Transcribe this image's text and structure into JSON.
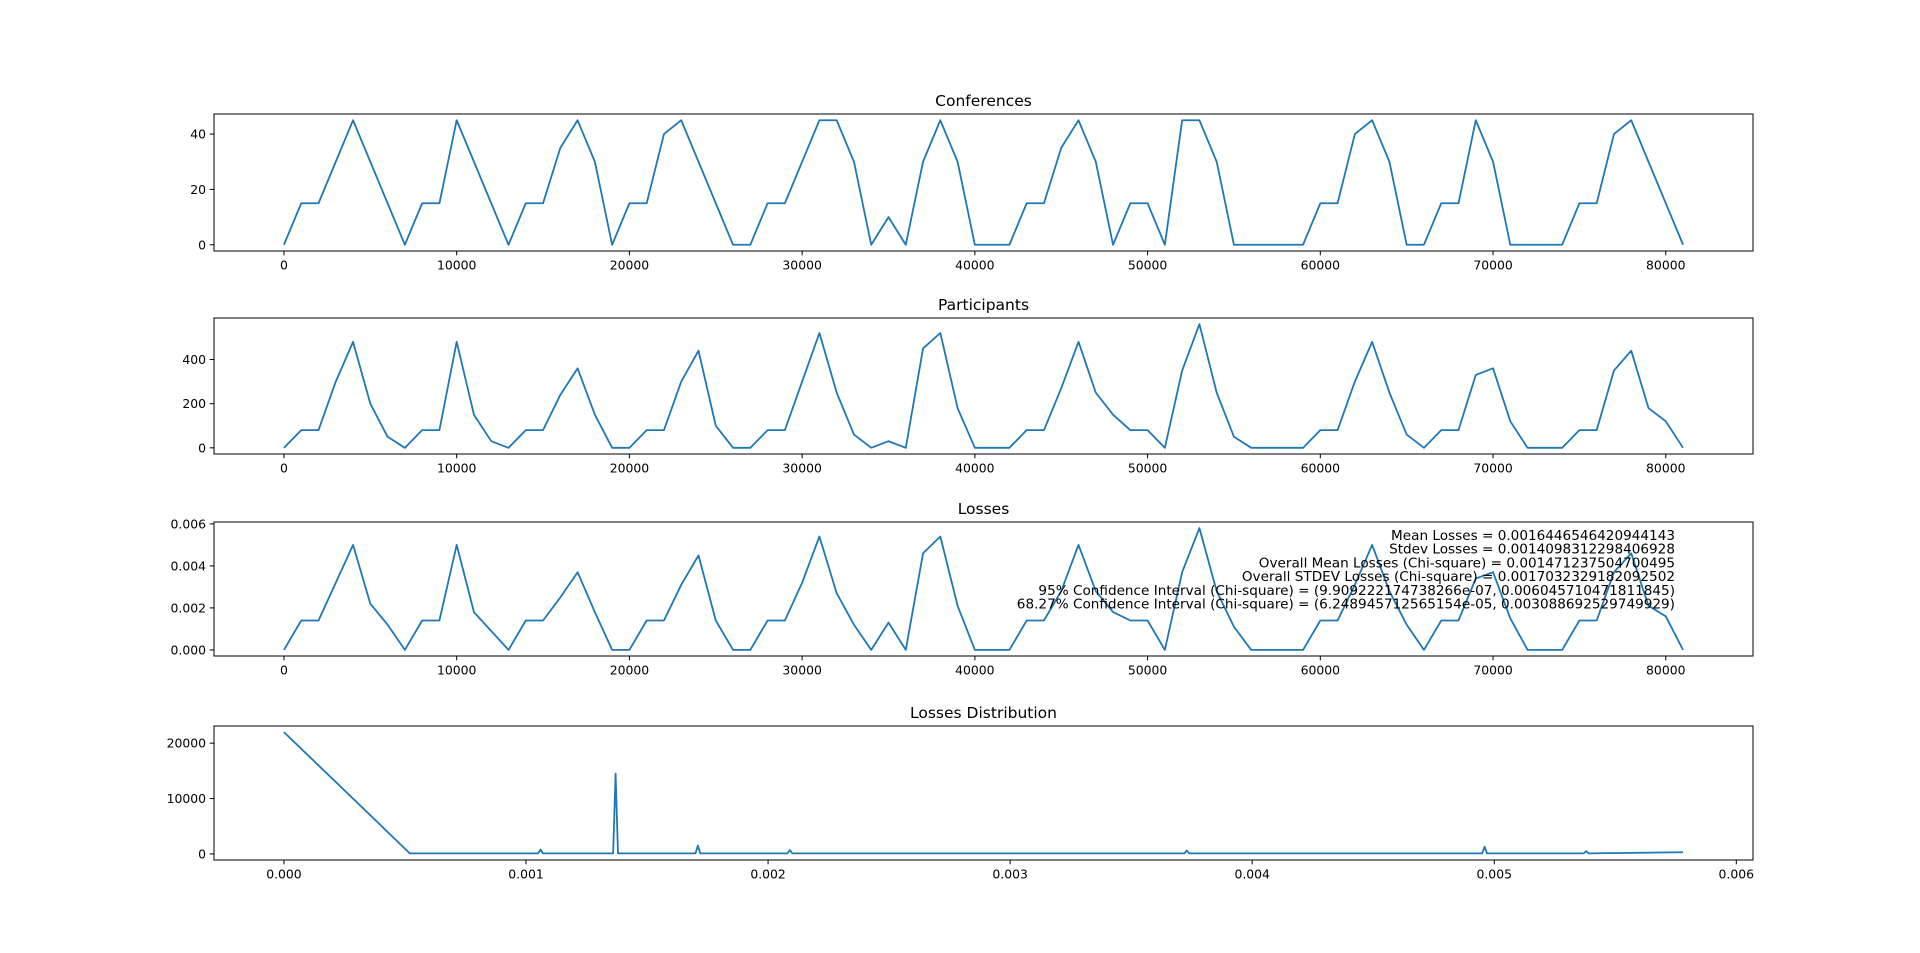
{
  "chart_data": [
    {
      "type": "line",
      "title": "Conferences",
      "color": "#1f77b4",
      "x": [
        0,
        1000,
        2000,
        3000,
        4000,
        5000,
        6000,
        7000,
        8000,
        9000,
        10000,
        11000,
        12000,
        13000,
        14000,
        15000,
        16000,
        17000,
        18000,
        19000,
        20000,
        21000,
        22000,
        23000,
        24000,
        25000,
        26000,
        27000,
        28000,
        29000,
        30000,
        31000,
        32000,
        33000,
        34000,
        35000,
        36000,
        37000,
        38000,
        39000,
        40000,
        41000,
        42000,
        43000,
        44000,
        45000,
        46000,
        47000,
        48000,
        49000,
        50000,
        51000,
        52000,
        53000,
        54000,
        55000,
        56000,
        57000,
        58000,
        59000,
        60000,
        61000,
        62000,
        63000,
        64000,
        65000,
        66000,
        67000,
        68000,
        69000,
        70000,
        71000,
        72000,
        73000,
        74000,
        75000,
        76000,
        77000,
        78000,
        79000,
        80000,
        81000
      ],
      "values": [
        0,
        15,
        15,
        30,
        45,
        30,
        15,
        0,
        15,
        15,
        45,
        30,
        15,
        0,
        15,
        15,
        35,
        45,
        30,
        0,
        15,
        15,
        40,
        45,
        30,
        15,
        0,
        0,
        15,
        15,
        30,
        45,
        45,
        30,
        0,
        10,
        0,
        30,
        45,
        30,
        0,
        0,
        0,
        15,
        15,
        35,
        45,
        30,
        0,
        15,
        15,
        0,
        45,
        45,
        30,
        0,
        0,
        0,
        0,
        0,
        15,
        15,
        40,
        45,
        30,
        0,
        0,
        15,
        15,
        45,
        30,
        0,
        0,
        0,
        0,
        15,
        15,
        40,
        45,
        30,
        15,
        0
      ],
      "xlim": [
        -4050,
        85050
      ],
      "xticks": [
        0,
        10000,
        20000,
        30000,
        40000,
        50000,
        60000,
        70000,
        80000
      ],
      "ylim": [
        -2.25,
        47.25
      ],
      "yticks": [
        0,
        20,
        40
      ]
    },
    {
      "type": "line",
      "title": "Participants",
      "color": "#1f77b4",
      "x": [
        0,
        1000,
        2000,
        3000,
        4000,
        5000,
        6000,
        7000,
        8000,
        9000,
        10000,
        11000,
        12000,
        13000,
        14000,
        15000,
        16000,
        17000,
        18000,
        19000,
        20000,
        21000,
        22000,
        23000,
        24000,
        25000,
        26000,
        27000,
        28000,
        29000,
        30000,
        31000,
        32000,
        33000,
        34000,
        35000,
        36000,
        37000,
        38000,
        39000,
        40000,
        41000,
        42000,
        43000,
        44000,
        45000,
        46000,
        47000,
        48000,
        49000,
        50000,
        51000,
        52000,
        53000,
        54000,
        55000,
        56000,
        57000,
        58000,
        59000,
        60000,
        61000,
        62000,
        63000,
        64000,
        65000,
        66000,
        67000,
        68000,
        69000,
        70000,
        71000,
        72000,
        73000,
        74000,
        75000,
        76000,
        77000,
        78000,
        79000,
        80000,
        81000
      ],
      "values": [
        0,
        80,
        80,
        300,
        480,
        200,
        50,
        0,
        80,
        80,
        480,
        150,
        30,
        0,
        80,
        80,
        240,
        360,
        150,
        0,
        0,
        80,
        80,
        300,
        440,
        100,
        0,
        0,
        80,
        80,
        300,
        520,
        250,
        60,
        0,
        30,
        0,
        450,
        520,
        180,
        0,
        0,
        0,
        80,
        80,
        270,
        480,
        250,
        150,
        80,
        80,
        0,
        350,
        560,
        250,
        50,
        0,
        0,
        0,
        0,
        80,
        80,
        300,
        480,
        250,
        60,
        0,
        80,
        80,
        330,
        360,
        120,
        0,
        0,
        0,
        80,
        80,
        350,
        440,
        180,
        120,
        0
      ],
      "xlim": [
        -4050,
        85050
      ],
      "xticks": [
        0,
        10000,
        20000,
        30000,
        40000,
        50000,
        60000,
        70000,
        80000
      ],
      "ylim": [
        -28,
        588
      ],
      "yticks": [
        0,
        200,
        400
      ]
    },
    {
      "type": "line",
      "title": "Losses",
      "color": "#1f77b4",
      "x": [
        0,
        1000,
        2000,
        3000,
        4000,
        5000,
        6000,
        7000,
        8000,
        9000,
        10000,
        11000,
        12000,
        13000,
        14000,
        15000,
        16000,
        17000,
        18000,
        19000,
        20000,
        21000,
        22000,
        23000,
        24000,
        25000,
        26000,
        27000,
        28000,
        29000,
        30000,
        31000,
        32000,
        33000,
        34000,
        35000,
        36000,
        37000,
        38000,
        39000,
        40000,
        41000,
        42000,
        43000,
        44000,
        45000,
        46000,
        47000,
        48000,
        49000,
        50000,
        51000,
        52000,
        53000,
        54000,
        55000,
        56000,
        57000,
        58000,
        59000,
        60000,
        61000,
        62000,
        63000,
        64000,
        65000,
        66000,
        67000,
        68000,
        69000,
        70000,
        71000,
        72000,
        73000,
        74000,
        75000,
        76000,
        77000,
        78000,
        79000,
        80000,
        81000
      ],
      "values": [
        0,
        0.0014,
        0.0014,
        0.0032,
        0.005,
        0.0022,
        0.0012,
        0,
        0.0014,
        0.0014,
        0.005,
        0.0018,
        0.0009,
        0,
        0.0014,
        0.0014,
        0.0025,
        0.0037,
        0.0018,
        0,
        0,
        0.0014,
        0.0014,
        0.0031,
        0.0045,
        0.0014,
        0,
        0,
        0.0014,
        0.0014,
        0.0032,
        0.0054,
        0.0027,
        0.0012,
        0,
        0.0013,
        0,
        0.0046,
        0.0054,
        0.0021,
        0,
        0,
        0,
        0.0014,
        0.0014,
        0.0028,
        0.005,
        0.0028,
        0.0018,
        0.0014,
        0.0014,
        0,
        0.0037,
        0.0058,
        0.0028,
        0.0011,
        0,
        0,
        0,
        0,
        0.0014,
        0.0014,
        0.0031,
        0.005,
        0.0028,
        0.0012,
        0,
        0.0014,
        0.0014,
        0.0034,
        0.0037,
        0.0015,
        0,
        0,
        0,
        0.0014,
        0.0014,
        0.0037,
        0.0046,
        0.0021,
        0.0016,
        0
      ],
      "xlim": [
        -4050,
        85050
      ],
      "xticks": [
        0,
        10000,
        20000,
        30000,
        40000,
        50000,
        60000,
        70000,
        80000
      ],
      "ylim": [
        -0.00029,
        0.00609
      ],
      "yticks": [
        {
          "value": 0,
          "label": "0.000"
        },
        {
          "value": 0.002,
          "label": "0.002"
        },
        {
          "value": 0.004,
          "label": "0.004"
        },
        {
          "value": 0.006,
          "label": "0.006"
        }
      ],
      "annotations": [
        "Mean Losses = 0.0016446546420944143",
        "Stdev Losses = 0.0014098312298406928",
        "Overall Mean Losses (Chi-square) = 0.0014712375047004​95",
        "Overall STDEV Losses (Chi-square) = 0.0017032329182092502",
        "95% Confidence Interval (Chi-square) = (9.909222174738266e-07, 0.006045710471811845)",
        "68.27% Confidence Interval (Chi-square) = (6.248945712565154e-05, 0.003088692529749929)"
      ]
    },
    {
      "type": "line",
      "title": "Losses Distribution",
      "color": "#1f77b4",
      "x": [
        0,
        0.00052,
        0.00105,
        0.00106,
        0.00107,
        0.00136,
        0.00137,
        0.00138,
        0.0017,
        0.00171,
        0.00172,
        0.00208,
        0.00209,
        0.0021,
        0.00372,
        0.00373,
        0.00374,
        0.00495,
        0.00496,
        0.00497,
        0.00537,
        0.00538,
        0.00539,
        0.00578
      ],
      "values": [
        22000,
        100,
        100,
        800,
        100,
        100,
        14500,
        100,
        100,
        1500,
        100,
        100,
        700,
        100,
        100,
        600,
        100,
        100,
        1300,
        100,
        100,
        500,
        100,
        300
      ],
      "xlim": [
        -0.000289,
        0.006069
      ],
      "xticks": [
        {
          "value": 0,
          "label": "0.000"
        },
        {
          "value": 0.001,
          "label": "0.001"
        },
        {
          "value": 0.002,
          "label": "0.002"
        },
        {
          "value": 0.003,
          "label": "0.003"
        },
        {
          "value": 0.004,
          "label": "0.004"
        },
        {
          "value": 0.005,
          "label": "0.005"
        },
        {
          "value": 0.006,
          "label": "0.006"
        }
      ],
      "ylim": [
        -1100,
        23100
      ],
      "yticks": [
        0,
        10000,
        20000
      ]
    }
  ]
}
